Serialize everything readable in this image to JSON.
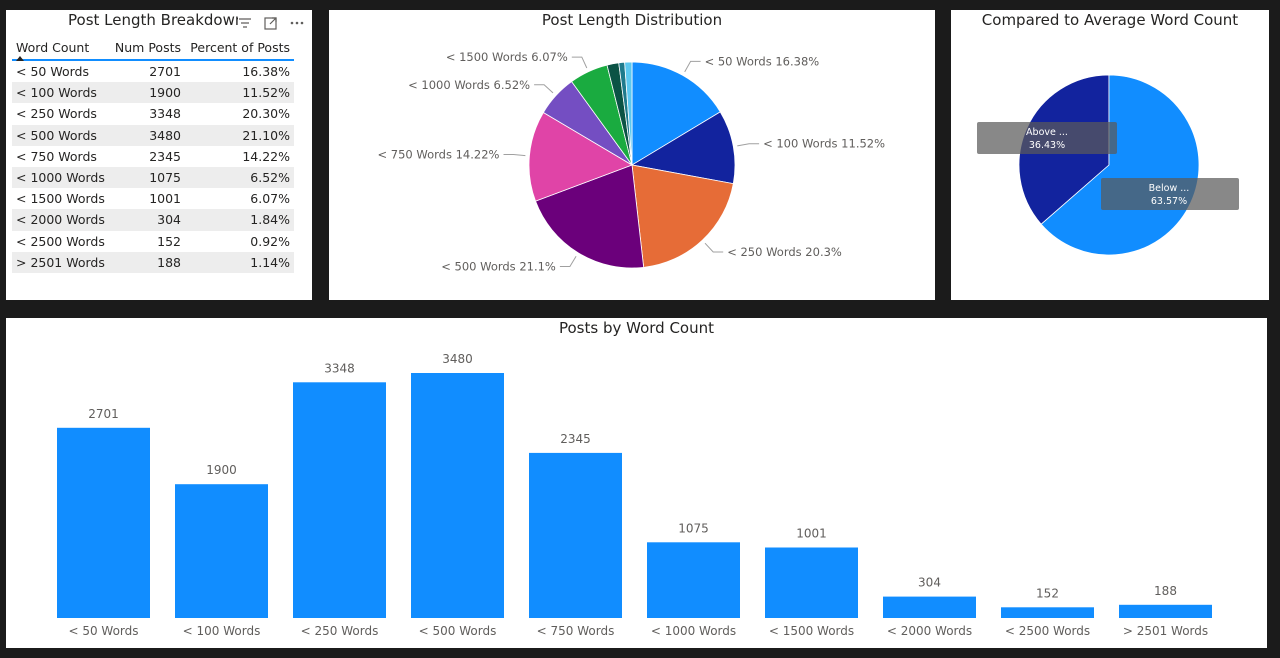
{
  "table_panel": {
    "title": "Post Length Breakdown",
    "columns": [
      "Word Count",
      "Num Posts",
      "Percent of Posts"
    ],
    "rows": [
      [
        "< 50 Words",
        "2701",
        "16.38%"
      ],
      [
        "< 100 Words",
        "1900",
        "11.52%"
      ],
      [
        "< 250 Words",
        "3348",
        "20.30%"
      ],
      [
        "< 500 Words",
        "3480",
        "21.10%"
      ],
      [
        "< 750 Words",
        "2345",
        "14.22%"
      ],
      [
        "< 1000 Words",
        "1075",
        "6.52%"
      ],
      [
        "< 1500 Words",
        "1001",
        "6.07%"
      ],
      [
        "< 2000 Words",
        "304",
        "1.84%"
      ],
      [
        "< 2500 Words",
        "152",
        "0.92%"
      ],
      [
        "> 2501 Words",
        "188",
        "1.14%"
      ]
    ],
    "icons": [
      "filter-icon",
      "focus-mode-icon",
      "more-options-icon"
    ]
  },
  "chart_data": [
    {
      "type": "pie",
      "title": "Post Length Distribution",
      "categories": [
        "< 50 Words",
        "< 100 Words",
        "< 250 Words",
        "< 500 Words",
        "< 750 Words",
        "< 1000 Words",
        "< 1500 Words",
        "< 2000 Words",
        "< 2500 Words",
        "> 2501 Words"
      ],
      "values": [
        16.38,
        11.52,
        20.3,
        21.1,
        14.22,
        6.52,
        6.07,
        1.84,
        0.92,
        1.14
      ],
      "labels": [
        "< 50 Words 16.38%",
        "< 100 Words 11.52%",
        "< 250 Words 20.3%",
        "< 500 Words 21.1%",
        "< 750 Words 14.22%",
        "< 1000 Words 6.52%",
        "< 1500 Words 6.07%",
        "",
        "",
        ""
      ],
      "colors": [
        "#118dff",
        "#12239e",
        "#e66c37",
        "#6b007b",
        "#e044a7",
        "#744ec2",
        "#1aab40",
        "#15c6f4",
        "#4092ff",
        "#d9b300"
      ]
    },
    {
      "type": "pie",
      "title": "Compared to Average Word Count",
      "categories": [
        "Above ...",
        "Below ..."
      ],
      "values": [
        36.43,
        63.57
      ],
      "labels": [
        "36.43%",
        "63.57%"
      ],
      "colors": [
        "#12239e",
        "#118dff"
      ]
    },
    {
      "type": "bar",
      "title": "Posts by Word Count",
      "categories": [
        "< 50 Words",
        "< 100 Words",
        "< 250 Words",
        "< 500 Words",
        "< 750 Words",
        "< 1000 Words",
        "< 1500 Words",
        "< 2000 Words",
        "< 2500 Words",
        "> 2501 Words"
      ],
      "values": [
        2701,
        1900,
        3348,
        3480,
        2345,
        1075,
        1001,
        304,
        152,
        188
      ],
      "ylim": [
        0,
        3480
      ],
      "color": "#118dff"
    }
  ]
}
